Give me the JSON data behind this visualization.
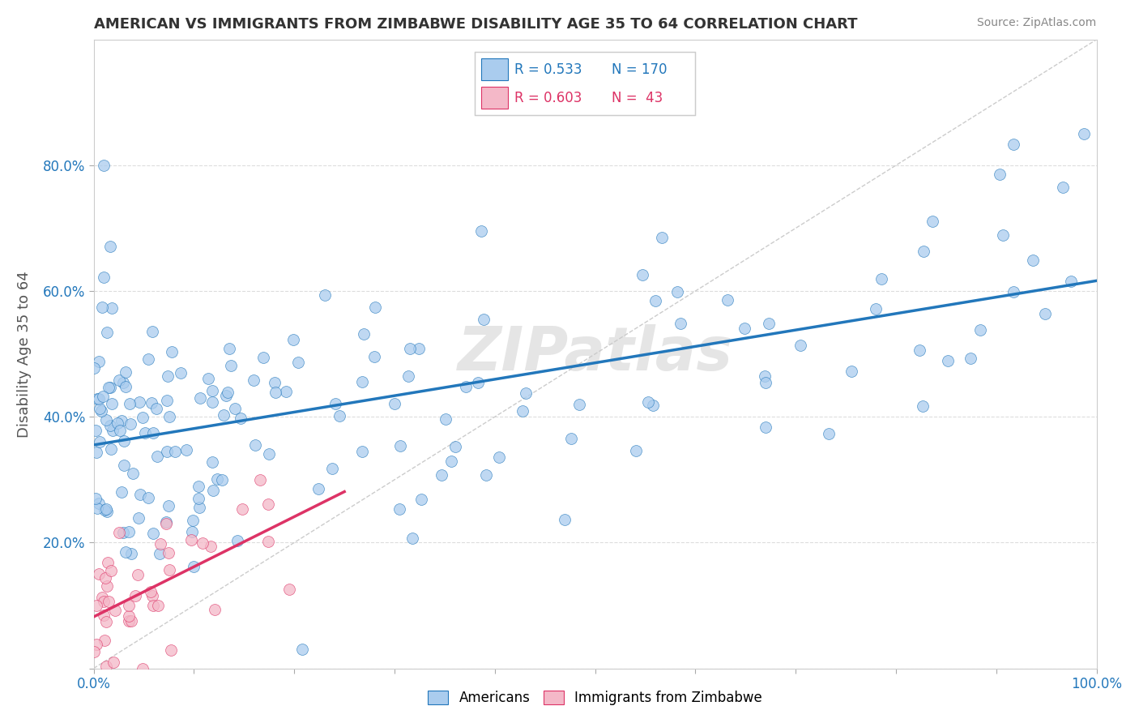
{
  "title": "AMERICAN VS IMMIGRANTS FROM ZIMBABWE DISABILITY AGE 35 TO 64 CORRELATION CHART",
  "source": "Source: ZipAtlas.com",
  "ylabel": "Disability Age 35 to 64",
  "xlim": [
    0,
    1.0
  ],
  "ylim": [
    0,
    1.0
  ],
  "xticks": [
    0.0,
    0.1,
    0.2,
    0.3,
    0.4,
    0.5,
    0.6,
    0.7,
    0.8,
    0.9,
    1.0
  ],
  "yticks": [
    0.0,
    0.2,
    0.4,
    0.6,
    0.8
  ],
  "xticklabels": [
    "0.0%",
    "",
    "",
    "",
    "",
    "",
    "",
    "",
    "",
    "",
    "100.0%"
  ],
  "yticklabels": [
    "",
    "20.0%",
    "40.0%",
    "60.0%",
    "80.0%"
  ],
  "legend_r_american": "0.533",
  "legend_n_american": "170",
  "legend_r_zimbabwe": "0.603",
  "legend_n_zimbabwe": " 43",
  "american_color": "#aaccee",
  "zimbabwe_color": "#f4b8c8",
  "american_line_color": "#2277bb",
  "zimbabwe_line_color": "#dd3366",
  "diagonal_color": "#cccccc",
  "watermark": "ZIPatlas",
  "background_color": "#ffffff",
  "grid_color": "#dddddd",
  "title_color": "#333333",
  "axis_label_color": "#555555",
  "tick_color": "#2277bb",
  "american_R": 0.533,
  "zimbabwe_R": 0.603,
  "seed": 42
}
